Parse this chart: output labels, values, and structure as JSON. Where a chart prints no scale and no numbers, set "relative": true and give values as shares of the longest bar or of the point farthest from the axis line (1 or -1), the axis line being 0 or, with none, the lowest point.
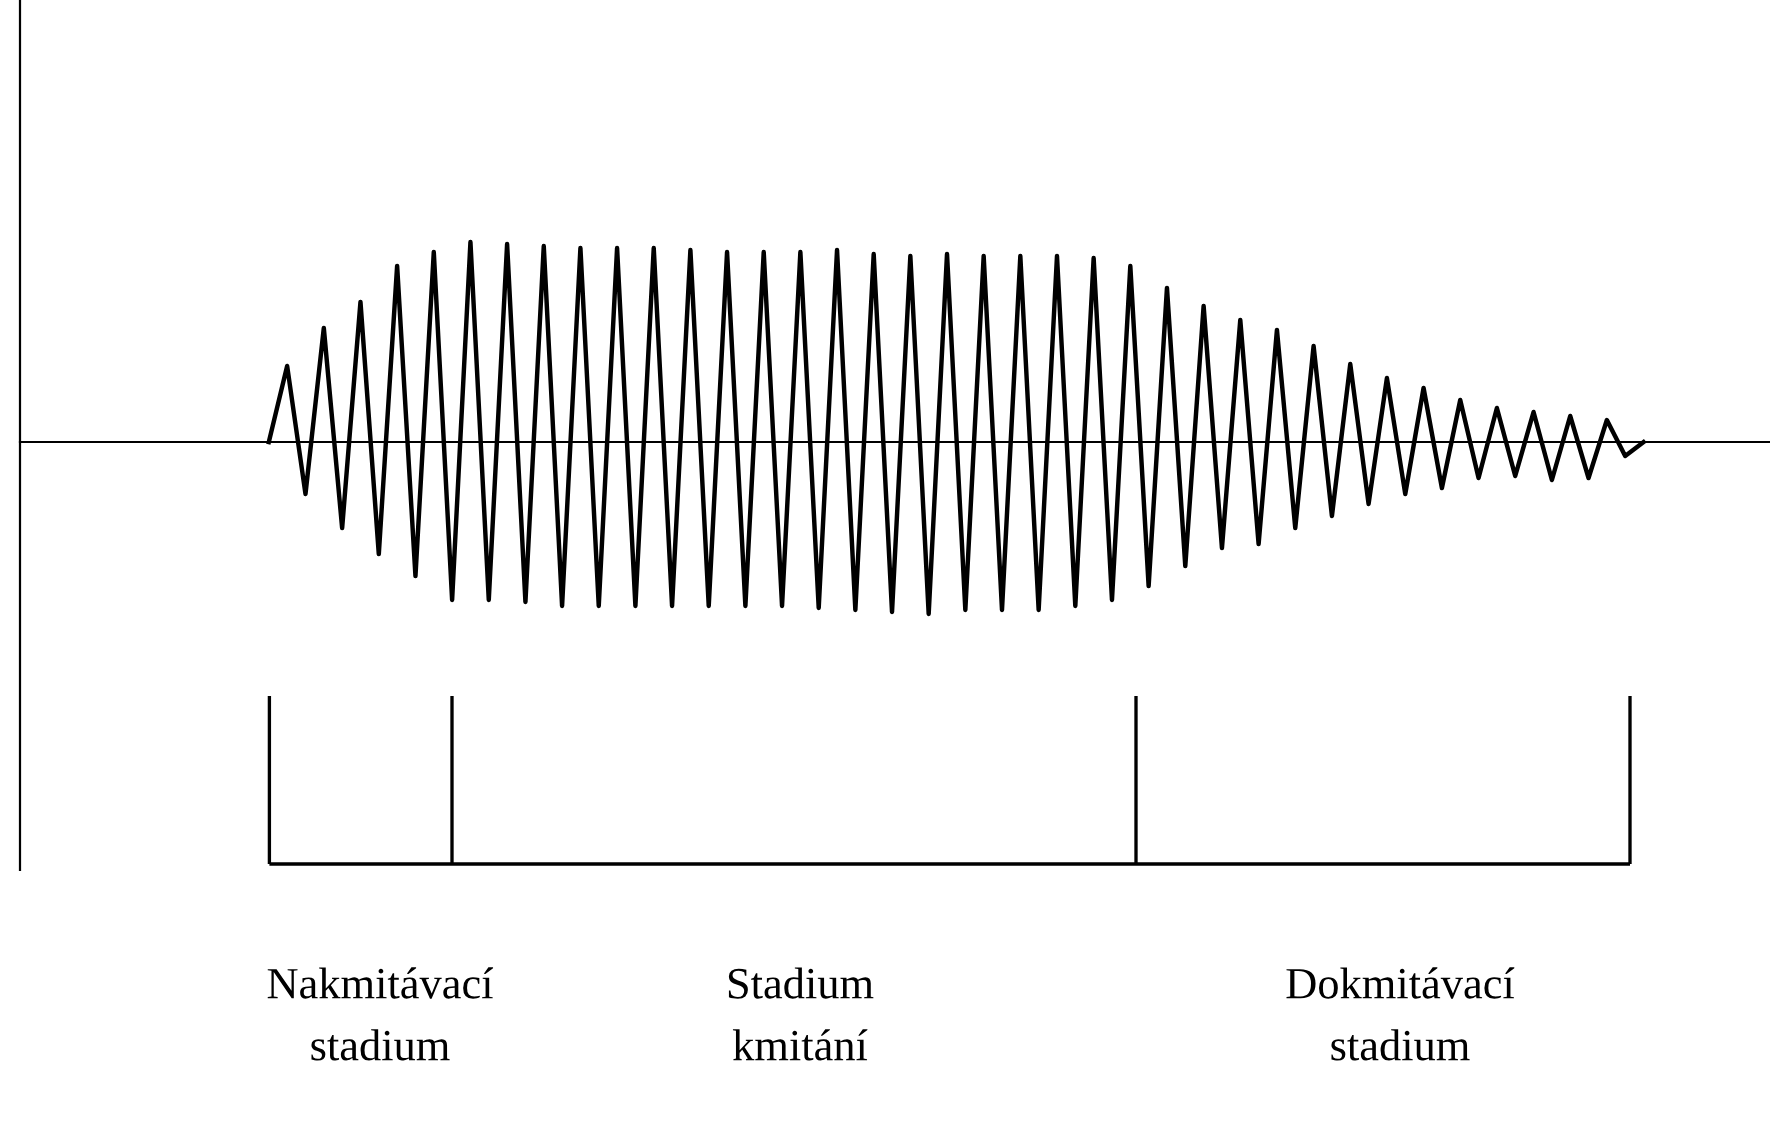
{
  "chart_data": {
    "type": "line",
    "relative": true,
    "categories": [
      null,
      null,
      null,
      null,
      null,
      null,
      null,
      null,
      null,
      null,
      null,
      null,
      null,
      null,
      null,
      null,
      null,
      null,
      null,
      null,
      null,
      null,
      null,
      null,
      null,
      null,
      null,
      null,
      null,
      null,
      null,
      null,
      null,
      null,
      null,
      null,
      null,
      null,
      null,
      null,
      null,
      null,
      null,
      null,
      null,
      null,
      null,
      null,
      null,
      null,
      null,
      null,
      null,
      null,
      null,
      null,
      null,
      null,
      null,
      null,
      null,
      null,
      null,
      null,
      null,
      null,
      null,
      null,
      null,
      null,
      null,
      null,
      null,
      null,
      null,
      null
    ],
    "series": [
      {
        "color": "#000000",
        "values": [
          0,
          0.38,
          -0.26,
          0.57,
          -0.43,
          0.7,
          -0.56,
          0.88,
          -0.67,
          0.95,
          -0.79,
          1.0,
          -0.79,
          0.99,
          -0.8,
          0.98,
          -0.82,
          0.97,
          -0.82,
          0.97,
          -0.82,
          0.97,
          -0.82,
          0.96,
          -0.82,
          0.95,
          -0.82,
          0.95,
          -0.82,
          0.95,
          -0.83,
          0.96,
          -0.84,
          0.94,
          -0.85,
          0.93,
          -0.86,
          0.94,
          -0.84,
          0.93,
          -0.84,
          0.93,
          -0.84,
          0.93,
          -0.82,
          0.92,
          -0.79,
          0.88,
          -0.72,
          0.77,
          -0.62,
          0.68,
          -0.53,
          0.61,
          -0.51,
          0.56,
          -0.43,
          0.48,
          -0.37,
          0.39,
          -0.31,
          0.32,
          -0.26,
          0.27,
          -0.23,
          0.21,
          -0.18,
          0.17,
          -0.17,
          0.15,
          -0.19,
          0.13,
          -0.18,
          0.11,
          -0.07,
          0
        ]
      }
    ],
    "annotations": [
      "Nakmitávací\nstadium",
      "Stadium\nkmitání",
      "Dokmitávací\nstadium"
    ],
    "grid": false,
    "marker": "none",
    "line_style": "solid"
  }
}
